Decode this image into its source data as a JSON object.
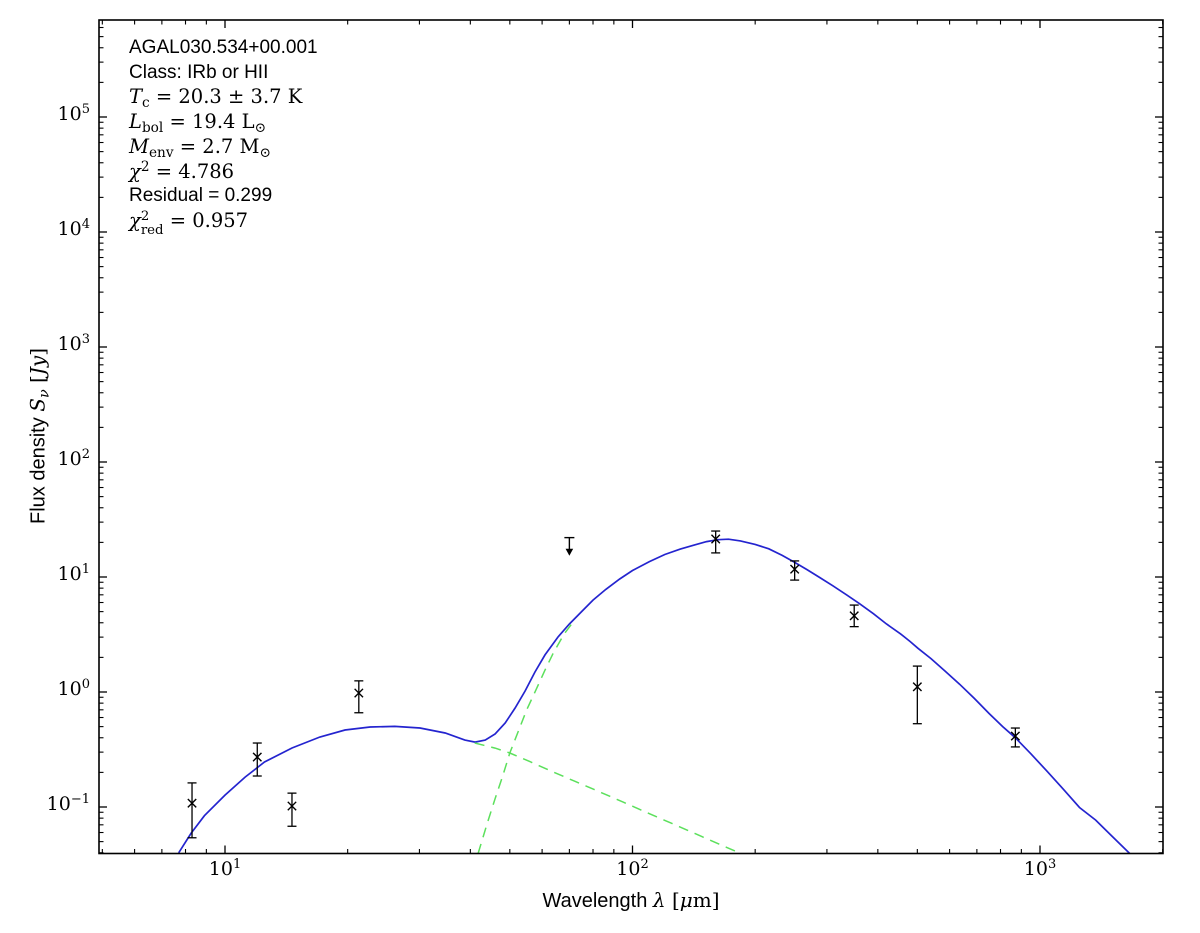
{
  "figure": {
    "background": "#ffffff"
  },
  "annotation": {
    "source": "AGAL030.534+00.001",
    "class_line": "Class: IRb or HII",
    "t_sym": "T",
    "t_sub": "c",
    "t_rest": " = 20.3 ± 3.7 K",
    "l_sym": "L",
    "l_sub": "bol",
    "l_rest": " = 19.4 L",
    "l_unit_sub": "⊙",
    "m_sym": "M",
    "m_sub": "env",
    "m_rest": " = 2.7 M",
    "m_unit_sub": "⊙",
    "chi_sym": "χ",
    "chi_sup": "2",
    "chi_rest": " = 4.786",
    "residual": "Residual = 0.299",
    "chired_sym": "χ",
    "chired_sup": "2",
    "chired_sub": "red",
    "chired_rest": " = 0.957"
  },
  "chart_data": {
    "type": "line+scatter",
    "title": "",
    "xlabel": {
      "pre": "Wavelength ",
      "lambda": "λ",
      "bracket": " [",
      "mu": "μ",
      "post": "m]"
    },
    "ylabel": {
      "pre": "Flux density ",
      "s": "S",
      "nu": "ν",
      "open": " [",
      "unit": "Jy",
      "close": "]"
    },
    "x_ticks": [
      {
        "value": 10,
        "base": "10",
        "exp": "1"
      },
      {
        "value": 100,
        "base": "10",
        "exp": "2"
      },
      {
        "value": 1000,
        "base": "10",
        "exp": "3"
      }
    ],
    "y_ticks": [
      {
        "value": 100000,
        "base": "10",
        "exp": "5"
      },
      {
        "value": 10000,
        "base": "10",
        "exp": "4"
      },
      {
        "value": 1000,
        "base": "10",
        "exp": "3"
      },
      {
        "value": 100,
        "base": "10",
        "exp": "2"
      },
      {
        "value": 10,
        "base": "10",
        "exp": "1"
      },
      {
        "value": 1,
        "base": "10",
        "exp": "0"
      },
      {
        "value": 0.1,
        "base": "10",
        "exp": "−1"
      }
    ],
    "xlim": [
      4.9,
      2000
    ],
    "ylim": [
      0.04,
      700000
    ],
    "grid": false,
    "legend": "none",
    "colors": {
      "model_total": "#2424cf",
      "model_components": "#5ce05c",
      "data": "#000000",
      "axis": "#000000"
    },
    "series": [
      {
        "name": "model-total",
        "style": "solid",
        "color_key": "model_total",
        "points": [
          [
            7.7,
            0.04
          ],
          [
            8.25,
            0.059
          ],
          [
            8.9,
            0.084
          ],
          [
            10,
            0.127
          ],
          [
            11.2,
            0.182
          ],
          [
            12.5,
            0.246
          ],
          [
            14.6,
            0.326
          ],
          [
            17.1,
            0.406
          ],
          [
            19.7,
            0.467
          ],
          [
            22.7,
            0.496
          ],
          [
            26.1,
            0.502
          ],
          [
            30.1,
            0.486
          ],
          [
            34.7,
            0.44
          ],
          [
            38.8,
            0.382
          ],
          [
            41.1,
            0.367
          ],
          [
            43.5,
            0.382
          ],
          [
            46,
            0.431
          ],
          [
            48.7,
            0.538
          ],
          [
            51.5,
            0.726
          ],
          [
            54.5,
            1.02
          ],
          [
            57.6,
            1.49
          ],
          [
            61,
            2.1
          ],
          [
            65.6,
            3.0
          ],
          [
            70,
            3.9
          ],
          [
            75,
            5.0
          ],
          [
            80,
            6.3
          ],
          [
            86,
            7.8
          ],
          [
            93,
            9.6
          ],
          [
            100,
            11.4
          ],
          [
            110,
            13.6
          ],
          [
            120,
            15.7
          ],
          [
            131,
            17.5
          ],
          [
            142,
            19.0
          ],
          [
            152,
            20.3
          ],
          [
            162,
            21.1
          ],
          [
            172,
            21.3
          ],
          [
            184,
            20.6
          ],
          [
            200,
            19.2
          ],
          [
            216,
            17.6
          ],
          [
            233,
            15.4
          ],
          [
            250,
            13.4
          ],
          [
            268,
            11.6
          ],
          [
            288,
            9.9
          ],
          [
            310,
            8.4
          ],
          [
            335,
            7.0
          ],
          [
            360,
            5.9
          ],
          [
            390,
            4.8
          ],
          [
            420,
            3.9
          ],
          [
            455,
            3.2
          ],
          [
            480,
            2.75
          ],
          [
            502,
            2.4
          ],
          [
            540,
            1.95
          ],
          [
            585,
            1.52
          ],
          [
            635,
            1.17
          ],
          [
            690,
            0.88
          ],
          [
            750,
            0.65
          ],
          [
            810,
            0.5
          ],
          [
            870,
            0.4
          ],
          [
            950,
            0.29
          ],
          [
            1040,
            0.205
          ],
          [
            1140,
            0.143
          ],
          [
            1250,
            0.099
          ],
          [
            1370,
            0.077
          ],
          [
            1500,
            0.056
          ],
          [
            1660,
            0.0394
          ]
        ]
      },
      {
        "name": "cold-greybody-component",
        "style": "dashed",
        "color_key": "model_components",
        "points": [
          [
            41.8,
            0.0394
          ],
          [
            44,
            0.072
          ],
          [
            46,
            0.118
          ],
          [
            48,
            0.185
          ],
          [
            50,
            0.295
          ],
          [
            52.5,
            0.46
          ],
          [
            55,
            0.7
          ],
          [
            58,
            1.05
          ],
          [
            61,
            1.55
          ],
          [
            64,
            2.2
          ],
          [
            68,
            3.2
          ],
          [
            72,
            4.2
          ]
        ]
      },
      {
        "name": "hot-component-tail",
        "style": "dashed",
        "color_key": "model_components",
        "points": [
          [
            41,
            0.36
          ],
          [
            46,
            0.325
          ],
          [
            50,
            0.295
          ],
          [
            56,
            0.248
          ],
          [
            63,
            0.206
          ],
          [
            72,
            0.168
          ],
          [
            82,
            0.138
          ],
          [
            95,
            0.11
          ],
          [
            110,
            0.0875
          ],
          [
            128,
            0.0693
          ],
          [
            148,
            0.0553
          ],
          [
            170,
            0.0446
          ],
          [
            186,
            0.039
          ]
        ]
      }
    ],
    "data_points": [
      {
        "wavelength": 8.3,
        "flux": 0.108,
        "flux_lo": 0.054,
        "flux_hi": 0.162
      },
      {
        "wavelength": 12,
        "flux": 0.272,
        "flux_lo": 0.186,
        "flux_hi": 0.36
      },
      {
        "wavelength": 14.6,
        "flux": 0.102,
        "flux_lo": 0.068,
        "flux_hi": 0.132
      },
      {
        "wavelength": 21.3,
        "flux": 0.98,
        "flux_lo": 0.66,
        "flux_hi": 1.25
      },
      {
        "wavelength": 160,
        "flux": 21.4,
        "flux_lo": 16.2,
        "flux_hi": 25.1
      },
      {
        "wavelength": 250,
        "flux": 11.7,
        "flux_lo": 9.4,
        "flux_hi": 13.8
      },
      {
        "wavelength": 350,
        "flux": 4.6,
        "flux_lo": 3.7,
        "flux_hi": 5.7
      },
      {
        "wavelength": 500,
        "flux": 1.11,
        "flux_lo": 0.53,
        "flux_hi": 1.68
      },
      {
        "wavelength": 870,
        "flux": 0.414,
        "flux_lo": 0.333,
        "flux_hi": 0.486
      }
    ],
    "upper_limit": {
      "wavelength": 70,
      "flux": 22,
      "arrow_to": 15.3
    }
  }
}
